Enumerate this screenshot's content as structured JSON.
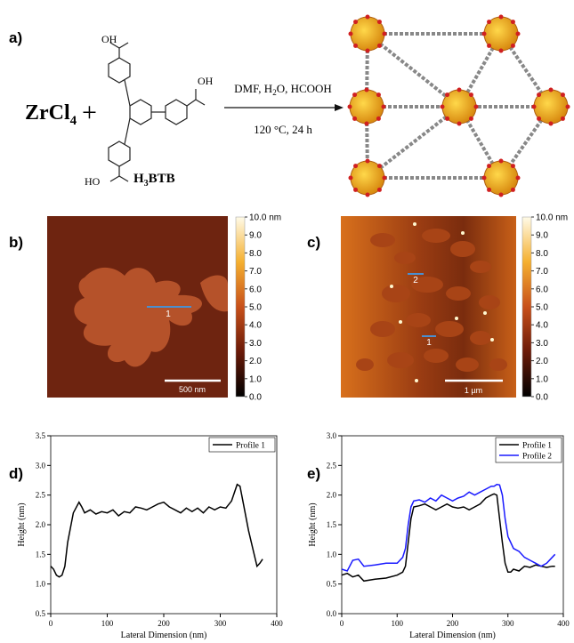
{
  "scheme": {
    "label": "a)",
    "reactant": "ZrCl",
    "reactant_sub": "4",
    "plus": "+",
    "ligand_groups": [
      "OH",
      "OH",
      "HO"
    ],
    "ligand_name": [
      "H",
      "3",
      "BTB"
    ],
    "conditions_top": [
      "DMF, H",
      "2",
      "O, HCOOH"
    ],
    "conditions_bottom": "120 °C, 24 h"
  },
  "afm": [
    {
      "label": "b)",
      "markers": [
        "1"
      ],
      "scale_bar": "500 nm",
      "colorbar": {
        "lim": [
          0,
          10
        ],
        "ticks": [
          {
            "value": 0,
            "label": "0.0"
          },
          {
            "value": 1,
            "label": "1.0"
          },
          {
            "value": 2,
            "label": "2.0"
          },
          {
            "value": 3,
            "label": "3.0"
          },
          {
            "value": 4,
            "label": "4.0"
          },
          {
            "value": 5,
            "label": "5.0"
          },
          {
            "value": 6,
            "label": "6.0"
          },
          {
            "value": 7,
            "label": "7.0"
          },
          {
            "value": 8,
            "label": "8.0"
          },
          {
            "value": 9,
            "label": "9.0"
          },
          {
            "value": 10,
            "label": "10.0 nm"
          }
        ]
      }
    },
    {
      "label": "c)",
      "markers": [
        "2",
        "1"
      ],
      "scale_bar": "1 µm",
      "colorbar": {
        "lim": [
          0,
          10
        ],
        "ticks": [
          {
            "value": 0,
            "label": "0.0"
          },
          {
            "value": 1,
            "label": "1.0"
          },
          {
            "value": 2,
            "label": "2.0"
          },
          {
            "value": 3,
            "label": "3.0"
          },
          {
            "value": 4,
            "label": "4.0"
          },
          {
            "value": 5,
            "label": "5.0"
          },
          {
            "value": 6,
            "label": "6.0"
          },
          {
            "value": 7,
            "label": "7.0"
          },
          {
            "value": 8,
            "label": "8.0"
          },
          {
            "value": 9,
            "label": "9.0"
          },
          {
            "value": 10,
            "label": "10.0 nm"
          }
        ]
      }
    }
  ],
  "chart_data": [
    {
      "type": "line",
      "panel_label": "d)",
      "xlabel": "Lateral Dimension (nm)",
      "ylabel": "Height (nm)",
      "xlim": [
        0,
        400
      ],
      "xticks": [
        0,
        100,
        200,
        300,
        400
      ],
      "ylim": [
        0.5,
        3.5
      ],
      "yticks": [
        0.5,
        {
          "value": 1,
          "label": "1.0"
        },
        1.5,
        {
          "value": 2,
          "label": "2.0"
        },
        2.5,
        {
          "value": 3,
          "label": "3.0"
        },
        3.5
      ],
      "legend": "upper right",
      "x": [
        0,
        5,
        10,
        15,
        20,
        25,
        30,
        40,
        50,
        55,
        60,
        70,
        80,
        90,
        100,
        110,
        120,
        130,
        140,
        150,
        160,
        170,
        180,
        190,
        200,
        210,
        220,
        230,
        240,
        250,
        260,
        270,
        280,
        290,
        300,
        310,
        320,
        330,
        335,
        340,
        350,
        360,
        365,
        370,
        375
      ],
      "series": [
        {
          "name": "Profile 1",
          "color": "#000000",
          "values": [
            1.3,
            1.25,
            1.15,
            1.12,
            1.15,
            1.3,
            1.7,
            2.2,
            2.38,
            2.3,
            2.2,
            2.25,
            2.18,
            2.22,
            2.2,
            2.25,
            2.15,
            2.22,
            2.2,
            2.3,
            2.28,
            2.25,
            2.3,
            2.35,
            2.38,
            2.3,
            2.25,
            2.2,
            2.28,
            2.22,
            2.28,
            2.2,
            2.3,
            2.25,
            2.3,
            2.28,
            2.4,
            2.68,
            2.65,
            2.4,
            1.9,
            1.5,
            1.3,
            1.35,
            1.42
          ]
        }
      ]
    },
    {
      "type": "line",
      "panel_label": "e)",
      "xlabel": "Lateral Dimension (nm)",
      "ylabel": "Height (nm)",
      "xlim": [
        0,
        400
      ],
      "xticks": [
        0,
        100,
        200,
        300,
        400
      ],
      "ylim": [
        0,
        3
      ],
      "yticks": [
        {
          "value": 0,
          "label": "0.0"
        },
        0.5,
        {
          "value": 1,
          "label": "1.0"
        },
        1.5,
        {
          "value": 2,
          "label": "2.0"
        },
        2.5,
        {
          "value": 3,
          "label": "3.0"
        }
      ],
      "legend": "upper right",
      "x": [
        0,
        10,
        20,
        30,
        40,
        60,
        80,
        100,
        110,
        115,
        120,
        125,
        130,
        140,
        150,
        160,
        170,
        180,
        190,
        200,
        210,
        220,
        230,
        240,
        250,
        260,
        270,
        275,
        280,
        285,
        290,
        295,
        300,
        305,
        310,
        320,
        330,
        340,
        350,
        360,
        370,
        380,
        385
      ],
      "series": [
        {
          "name": "Profile 1",
          "color": "#000000",
          "values": [
            0.65,
            0.68,
            0.62,
            0.65,
            0.55,
            0.58,
            0.6,
            0.65,
            0.7,
            0.8,
            1.2,
            1.6,
            1.8,
            1.82,
            1.85,
            1.8,
            1.75,
            1.8,
            1.85,
            1.8,
            1.78,
            1.8,
            1.75,
            1.8,
            1.85,
            1.95,
            2.0,
            2.02,
            2.0,
            1.6,
            1.2,
            0.85,
            0.7,
            0.7,
            0.75,
            0.72,
            0.8,
            0.78,
            0.82,
            0.8,
            0.78,
            0.8,
            0.8
          ]
        },
        {
          "name": "Profile 2",
          "color": "#1a1aff",
          "values": [
            0.75,
            0.72,
            0.9,
            0.92,
            0.8,
            0.82,
            0.85,
            0.85,
            0.95,
            1.1,
            1.5,
            1.8,
            1.9,
            1.92,
            1.88,
            1.95,
            1.9,
            2.0,
            1.95,
            1.9,
            1.95,
            1.98,
            2.05,
            2.0,
            2.05,
            2.1,
            2.15,
            2.15,
            2.18,
            2.17,
            2.0,
            1.6,
            1.3,
            1.2,
            1.1,
            1.05,
            0.95,
            0.9,
            0.85,
            0.8,
            0.85,
            0.95,
            1.0
          ]
        }
      ]
    }
  ]
}
